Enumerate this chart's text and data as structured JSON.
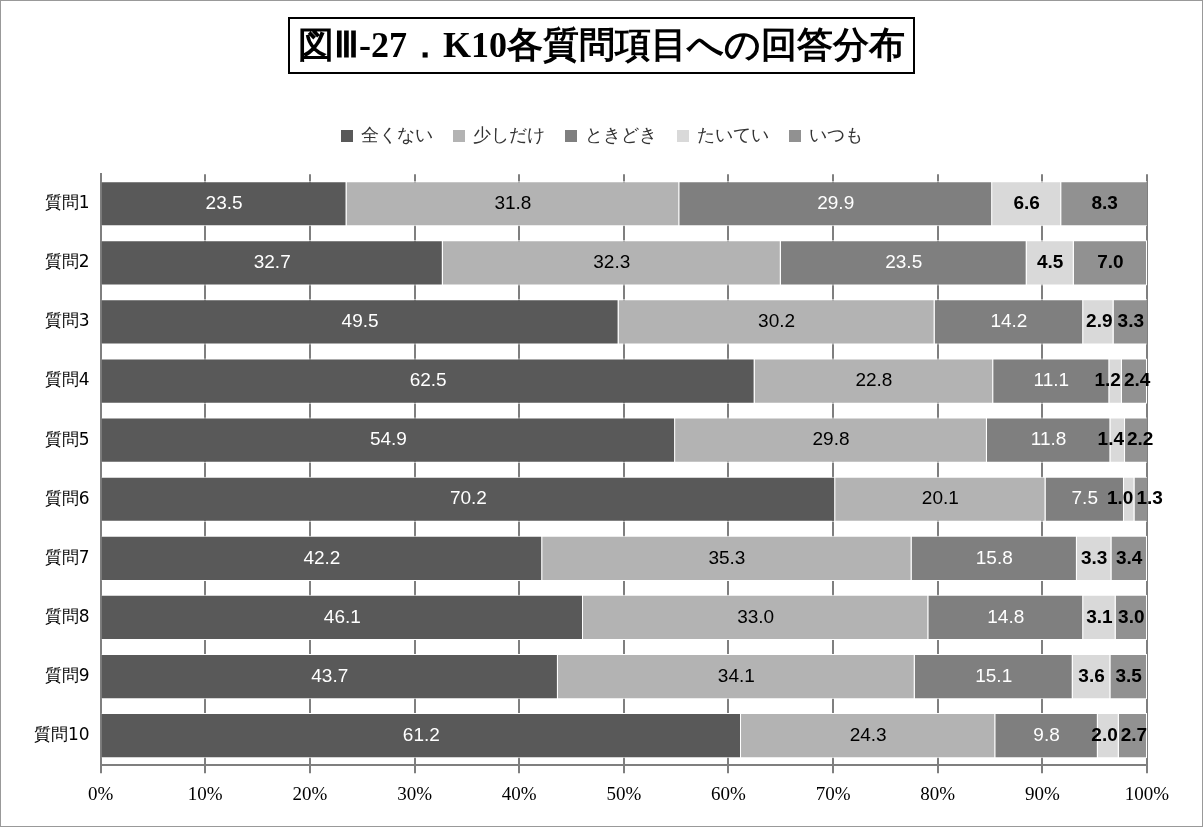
{
  "chart_data": {
    "type": "bar",
    "orientation": "horizontal",
    "stacked": true,
    "title": "図Ⅲ-27．K10各質問項目への回答分布",
    "categories": [
      "質問1",
      "質問2",
      "質問3",
      "質問4",
      "質問5",
      "質問6",
      "質問7",
      "質問8",
      "質問9",
      "質問10"
    ],
    "series": [
      {
        "name": "全くない",
        "color": "#595959",
        "values": [
          23.5,
          32.7,
          49.5,
          62.5,
          54.9,
          70.2,
          42.2,
          46.1,
          43.7,
          61.2
        ],
        "value_labels": [
          "23.5",
          "32.7",
          "49.5",
          "62.5",
          "54.9",
          "70.2",
          "42.2",
          "46.1",
          "43.7",
          "61.2"
        ]
      },
      {
        "name": "少しだけ",
        "color": "#b3b3b3",
        "values": [
          31.8,
          32.3,
          30.2,
          22.8,
          29.8,
          20.1,
          35.3,
          33.0,
          34.1,
          24.3
        ],
        "value_labels": [
          "31.8",
          "32.3",
          "30.2",
          "22.8",
          "29.8",
          "20.1",
          "35.3",
          "33.0",
          "34.1",
          "24.3"
        ]
      },
      {
        "name": "ときどき",
        "color": "#7f7f7f",
        "values": [
          29.9,
          23.5,
          14.2,
          11.1,
          11.8,
          7.5,
          15.8,
          14.8,
          15.1,
          9.8
        ],
        "value_labels": [
          "29.9",
          "23.5",
          "14.2",
          "11.1",
          "11.8",
          "7.5",
          "15.8",
          "14.8",
          "15.1",
          "9.8"
        ]
      },
      {
        "name": "たいてい",
        "color": "#d9d9d9",
        "values": [
          6.6,
          4.5,
          2.9,
          1.2,
          1.4,
          1.0,
          3.3,
          3.1,
          3.6,
          2.0
        ],
        "value_labels": [
          "6.6",
          "4.5",
          "2.9",
          "1.2",
          "1.4",
          "1.0",
          "3.3",
          "3.1",
          "3.6",
          "2.0"
        ]
      },
      {
        "name": "いつも",
        "color": "#919191",
        "values": [
          8.3,
          7.0,
          3.3,
          2.4,
          2.2,
          1.3,
          3.4,
          3.0,
          3.5,
          2.7
        ],
        "value_labels": [
          "8.3",
          "7.0",
          "3.3",
          "2.4",
          "2.2",
          "1.3",
          "3.4",
          "3.0",
          "3.5",
          "2.7"
        ]
      }
    ],
    "xlim": [
      0,
      100
    ],
    "xticks": [
      {
        "value": 0,
        "label": "0%"
      },
      {
        "value": 10,
        "label": "10%"
      },
      {
        "value": 20,
        "label": "20%"
      },
      {
        "value": 30,
        "label": "30%"
      },
      {
        "value": 40,
        "label": "40%"
      },
      {
        "value": 50,
        "label": "50%"
      },
      {
        "value": 60,
        "label": "60%"
      },
      {
        "value": 70,
        "label": "70%"
      },
      {
        "value": 80,
        "label": "80%"
      },
      {
        "value": 90,
        "label": "90%"
      },
      {
        "value": 100,
        "label": "100%"
      }
    ],
    "grid": "x",
    "legend": "top"
  }
}
